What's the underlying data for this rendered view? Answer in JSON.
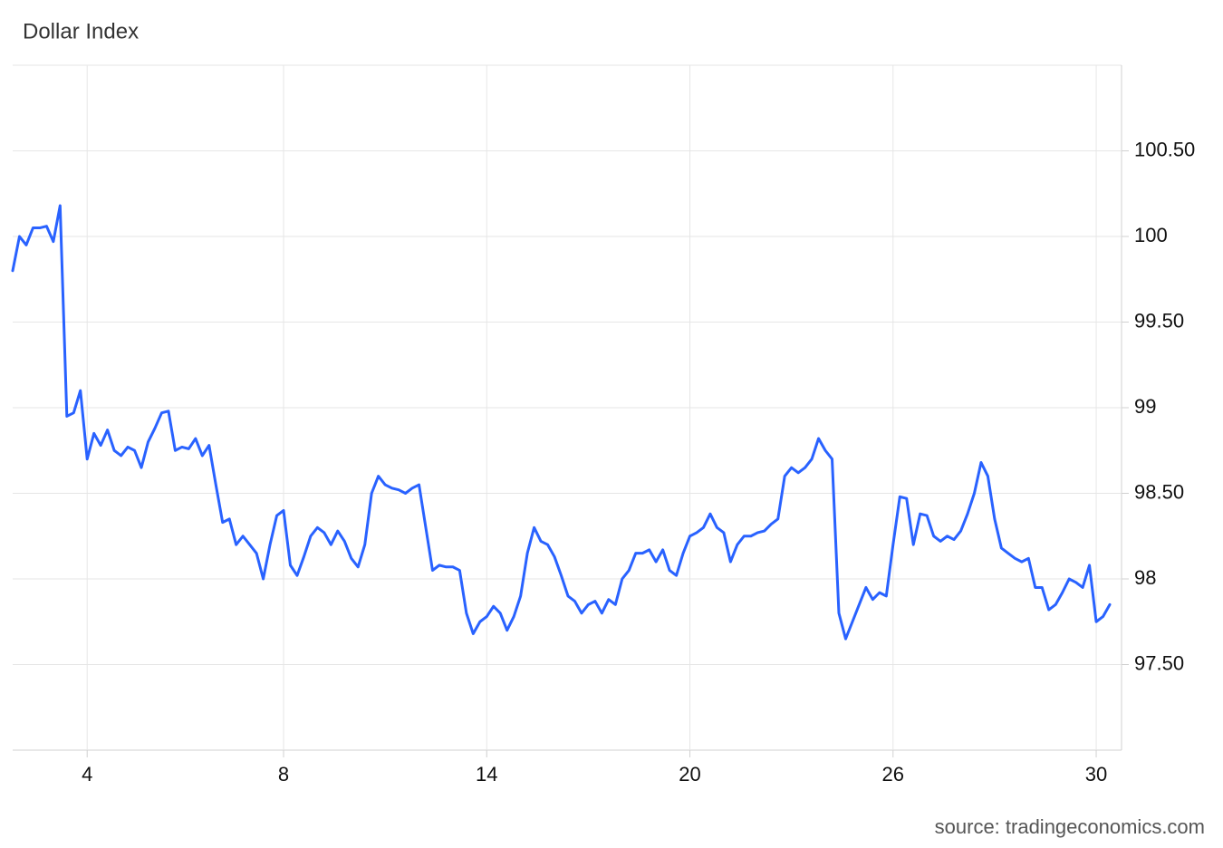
{
  "chart_data": {
    "type": "line",
    "title": "Dollar Index",
    "source": "source: tradingeconomics.com",
    "color": "#2962ff",
    "grid": true,
    "categories": [
      null,
      null,
      null,
      null,
      null,
      null,
      null,
      null,
      null,
      null,
      null,
      "4",
      null,
      null,
      null,
      null,
      null,
      null,
      null,
      null,
      null,
      null,
      null,
      null,
      null,
      null,
      null,
      null,
      null,
      null,
      null,
      null,
      null,
      null,
      null,
      null,
      null,
      null,
      null,
      null,
      "8",
      null,
      null,
      null,
      null,
      null,
      null,
      null,
      null,
      null,
      null,
      null,
      null,
      null,
      null,
      null,
      null,
      null,
      null,
      null,
      null,
      null,
      null,
      null,
      null,
      null,
      null,
      null,
      null,
      null,
      "14",
      null,
      null,
      null,
      null,
      null,
      null,
      null,
      null,
      null,
      null,
      null,
      null,
      null,
      null,
      null,
      null,
      null,
      null,
      null,
      null,
      null,
      null,
      null,
      null,
      null,
      null,
      null,
      null,
      null,
      "20",
      null,
      null,
      null,
      null,
      null,
      null,
      null,
      null,
      null,
      null,
      null,
      null,
      null,
      null,
      null,
      null,
      null,
      null,
      null,
      null,
      null,
      null,
      null,
      null,
      null,
      null,
      null,
      null,
      null,
      "26",
      null,
      null,
      null,
      null,
      null,
      null,
      null,
      null,
      null,
      null,
      null,
      null,
      null,
      null,
      null,
      null,
      null,
      null,
      null,
      null,
      null,
      null,
      null,
      null,
      null,
      null,
      null,
      null,
      null,
      "30",
      null,
      null
    ],
    "values": [
      99.8,
      100.0,
      99.95,
      100.05,
      100.05,
      100.06,
      99.97,
      100.18,
      98.95,
      98.97,
      99.1,
      98.7,
      98.85,
      98.78,
      98.87,
      98.75,
      98.72,
      98.77,
      98.75,
      98.65,
      98.8,
      98.88,
      98.97,
      98.98,
      98.75,
      98.77,
      98.76,
      98.82,
      98.72,
      98.78,
      98.55,
      98.33,
      98.35,
      98.2,
      98.25,
      98.2,
      98.15,
      98.0,
      98.2,
      98.37,
      98.4,
      98.08,
      98.02,
      98.13,
      98.25,
      98.3,
      98.27,
      98.2,
      98.28,
      98.22,
      98.12,
      98.07,
      98.2,
      98.5,
      98.6,
      98.55,
      98.53,
      98.52,
      98.5,
      98.53,
      98.55,
      98.3,
      98.05,
      98.08,
      98.07,
      98.07,
      98.05,
      97.8,
      97.68,
      97.75,
      97.78,
      97.84,
      97.8,
      97.7,
      97.78,
      97.9,
      98.15,
      98.3,
      98.22,
      98.2,
      98.13,
      98.02,
      97.9,
      97.87,
      97.8,
      97.85,
      97.87,
      97.8,
      97.88,
      97.85,
      98.0,
      98.05,
      98.15,
      98.15,
      98.17,
      98.1,
      98.17,
      98.05,
      98.02,
      98.15,
      98.25,
      98.27,
      98.3,
      98.38,
      98.3,
      98.27,
      98.1,
      98.2,
      98.25,
      98.25,
      98.27,
      98.28,
      98.32,
      98.35,
      98.6,
      98.65,
      98.62,
      98.65,
      98.7,
      98.82,
      98.75,
      98.7,
      97.8,
      97.65,
      97.75,
      97.85,
      97.95,
      97.88,
      97.92,
      97.9,
      98.2,
      98.48,
      98.47,
      98.2,
      98.38,
      98.37,
      98.25,
      98.22,
      98.25,
      98.23,
      98.28,
      98.38,
      98.5,
      98.68,
      98.6,
      98.35,
      98.18,
      98.15,
      98.12,
      98.1,
      98.12,
      97.95,
      97.95,
      97.82,
      97.85,
      97.92,
      98.0,
      97.98,
      97.95,
      98.08,
      97.75,
      97.78,
      97.85
    ],
    "ylim": [
      97,
      101
    ],
    "yticks": [
      {
        "value": 97.5,
        "label": "97.50"
      },
      98,
      {
        "value": 98.5,
        "label": "98.50"
      },
      99,
      {
        "value": 99.5,
        "label": "99.50"
      },
      100,
      {
        "value": 100.5,
        "label": "100.50"
      }
    ]
  }
}
